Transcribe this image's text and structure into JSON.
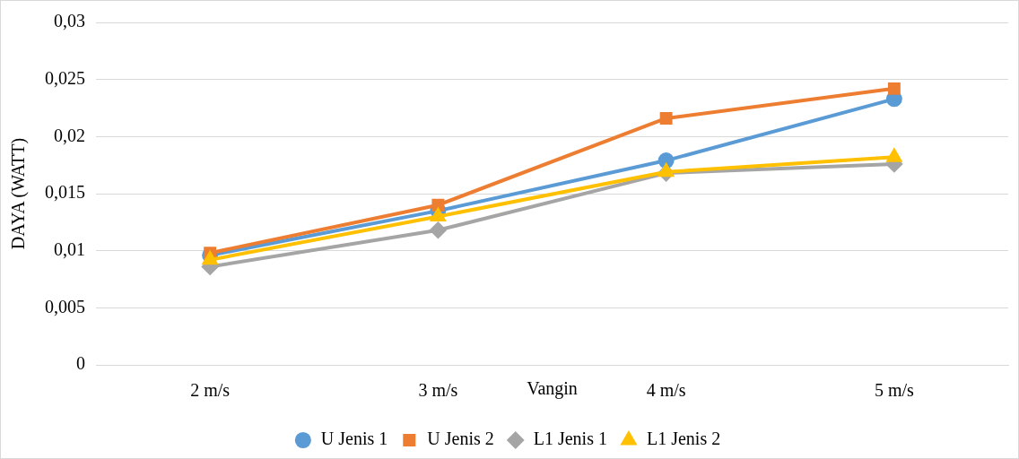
{
  "chart_data": {
    "type": "line",
    "xlabel": "Vangin",
    "ylabel": "DAYA (WATT)",
    "categories": [
      "2 m/s",
      "3 m/s",
      "4 m/s",
      "5 m/s"
    ],
    "series": [
      {
        "name": "U Jenis 1",
        "color": "#5b9bd5",
        "marker": "circle",
        "values": [
          0.0096,
          0.0135,
          0.0179,
          0.0233
        ]
      },
      {
        "name": "U Jenis 2",
        "color": "#ed7d31",
        "marker": "square",
        "values": [
          0.0098,
          0.014,
          0.0216,
          0.0242
        ]
      },
      {
        "name": "L1 Jenis 1",
        "color": "#a5a5a5",
        "marker": "diamond",
        "values": [
          0.0086,
          0.0118,
          0.0168,
          0.0176
        ]
      },
      {
        "name": "L1 Jenis 2",
        "color": "#ffc000",
        "marker": "triangle",
        "values": [
          0.0092,
          0.013,
          0.0169,
          0.0182
        ]
      }
    ],
    "ylim": [
      0,
      0.03
    ],
    "yticks": [
      0,
      {
        "value": 0.005,
        "label": "0,005"
      },
      {
        "value": 0.01,
        "label": "0,01"
      },
      {
        "value": 0.015,
        "label": "0,015"
      },
      {
        "value": 0.02,
        "label": "0,02"
      },
      {
        "value": 0.025,
        "label": "0,025"
      },
      {
        "value": 0.03,
        "label": "0,03"
      }
    ],
    "grid": "y",
    "legend": "bottom",
    "line_style": "solid"
  }
}
